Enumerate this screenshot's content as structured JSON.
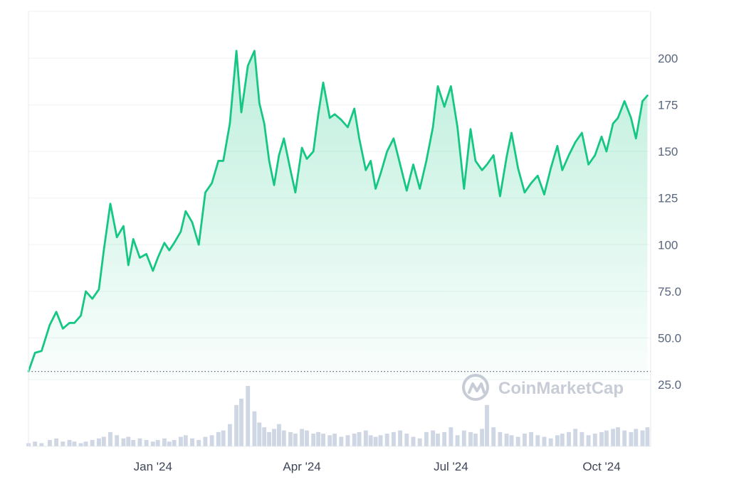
{
  "chart_data": {
    "type": "area",
    "y_ticks": [
      "200",
      "175",
      "150",
      "125",
      "100",
      "75.0",
      "50.0",
      "25.0"
    ],
    "y_tick_values": [
      200,
      175,
      150,
      125,
      100,
      75,
      50,
      25
    ],
    "ylim": [
      15,
      228
    ],
    "x_ticks": [
      "Jan '24",
      "Apr '24",
      "Jul '24",
      "Oct '24"
    ],
    "x_tick_values": [
      "2024-01-01",
      "2024-04-01",
      "2024-07-01",
      "2024-10-01"
    ],
    "xlim": [
      "2023-10-17",
      "2024-10-31"
    ],
    "baseline_value": 32,
    "grid": true,
    "colors": {
      "line": "#16c784",
      "fill": "#16c784",
      "grid": "#eff2f5",
      "volume": "#cfd6e4"
    },
    "watermark": "CoinMarketCap",
    "watermark_icon": "coinmarketcap-logo-icon",
    "series": [
      {
        "x": [
          "2023-10-17",
          "2023-10-21",
          "2023-10-25",
          "2023-10-30",
          "2023-11-03",
          "2023-11-07",
          "2023-11-11",
          "2023-11-14",
          "2023-11-18",
          "2023-11-21",
          "2023-11-25",
          "2023-11-29",
          "2023-12-02",
          "2023-12-06",
          "2023-12-10",
          "2023-12-14",
          "2023-12-17",
          "2023-12-20",
          "2023-12-24",
          "2023-12-28",
          "2024-01-01",
          "2024-01-04",
          "2024-01-08",
          "2024-01-11",
          "2024-01-14",
          "2024-01-18",
          "2024-01-21",
          "2024-01-25",
          "2024-01-29",
          "2024-02-02",
          "2024-02-06",
          "2024-02-10",
          "2024-02-13",
          "2024-02-17",
          "2024-02-21",
          "2024-02-24",
          "2024-02-28",
          "2024-03-03",
          "2024-03-06",
          "2024-03-09",
          "2024-03-12",
          "2024-03-15",
          "2024-03-18",
          "2024-03-21",
          "2024-03-25",
          "2024-03-28",
          "2024-04-01",
          "2024-04-04",
          "2024-04-08",
          "2024-04-11",
          "2024-04-14",
          "2024-04-18",
          "2024-04-21",
          "2024-04-25",
          "2024-04-29",
          "2024-05-03",
          "2024-05-06",
          "2024-05-10",
          "2024-05-13",
          "2024-05-16",
          "2024-05-19",
          "2024-05-23",
          "2024-05-27",
          "2024-05-31",
          "2024-06-04",
          "2024-06-08",
          "2024-06-12",
          "2024-06-16",
          "2024-06-20",
          "2024-06-23",
          "2024-06-27",
          "2024-07-01",
          "2024-07-05",
          "2024-07-09",
          "2024-07-13",
          "2024-07-16",
          "2024-07-20",
          "2024-07-23",
          "2024-07-27",
          "2024-07-31",
          "2024-08-04",
          "2024-08-07",
          "2024-08-11",
          "2024-08-15",
          "2024-08-19",
          "2024-08-23",
          "2024-08-27",
          "2024-08-31",
          "2024-09-04",
          "2024-09-07",
          "2024-09-11",
          "2024-09-15",
          "2024-09-19",
          "2024-09-23",
          "2024-09-27",
          "2024-10-01",
          "2024-10-04",
          "2024-10-08",
          "2024-10-11",
          "2024-10-15",
          "2024-10-19",
          "2024-10-22",
          "2024-10-26",
          "2024-10-29"
        ],
        "values": [
          32,
          42,
          43,
          57,
          64,
          55,
          58,
          58,
          62,
          75,
          71,
          76,
          97,
          122,
          104,
          110,
          89,
          103,
          93,
          95,
          86,
          93,
          101,
          97,
          101,
          107,
          118,
          112,
          100,
          128,
          133,
          145,
          145,
          165,
          204,
          171,
          196,
          204,
          176,
          165,
          145,
          132,
          148,
          157,
          140,
          128,
          152,
          146,
          150,
          170,
          187,
          168,
          170,
          167,
          163,
          173,
          157,
          140,
          145,
          130,
          138,
          150,
          157,
          143,
          129,
          143,
          130,
          145,
          163,
          185,
          174,
          185,
          163,
          130,
          162,
          145,
          140,
          143,
          148,
          126,
          147,
          160,
          141,
          128,
          133,
          137,
          127,
          141,
          153,
          140,
          148,
          155,
          160,
          143,
          148,
          158,
          150,
          165,
          168,
          177,
          168,
          157,
          177,
          180
        ]
      }
    ],
    "volume": [
      2,
      3,
      2,
      4,
      5,
      3,
      4,
      3,
      2,
      3,
      4,
      5,
      6,
      9,
      7,
      5,
      6,
      4,
      5,
      4,
      3,
      4,
      5,
      3,
      4,
      6,
      7,
      5,
      4,
      6,
      7,
      9,
      10,
      14,
      26,
      30,
      38,
      22,
      15,
      12,
      9,
      11,
      14,
      10,
      9,
      8,
      11,
      10,
      8,
      9,
      8,
      7,
      8,
      6,
      7,
      8,
      9,
      10,
      7,
      6,
      7,
      8,
      9,
      10,
      8,
      6,
      5,
      9,
      10,
      8,
      9,
      12,
      7,
      10,
      9,
      8,
      11,
      26,
      12,
      9,
      8,
      7,
      6,
      8,
      9,
      7,
      6,
      5,
      7,
      8,
      9,
      11,
      9,
      7,
      8,
      9,
      10,
      11,
      12,
      10,
      9,
      11,
      10,
      12
    ]
  }
}
